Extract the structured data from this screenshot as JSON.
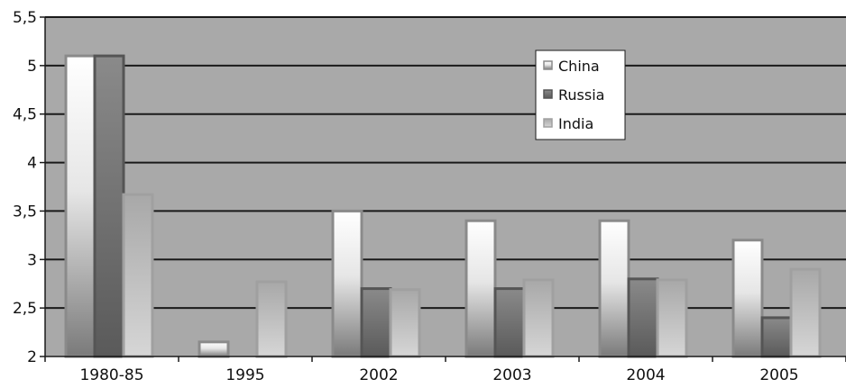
{
  "chart_data": {
    "type": "bar",
    "title": "",
    "xlabel": "",
    "ylabel": "",
    "ylim": [
      2,
      5.5
    ],
    "yticks": [
      "2",
      "2,5",
      "3",
      "3,5",
      "4",
      "4,5",
      "5",
      "5,5"
    ],
    "ytick_values": [
      2,
      2.5,
      3,
      3.5,
      4,
      4.5,
      5,
      5.5
    ],
    "categories": [
      "1980-85",
      "1995",
      "2002",
      "2003",
      "2004",
      "2005"
    ],
    "series": [
      {
        "name": "China",
        "values": [
          5.1,
          2.15,
          3.5,
          3.4,
          3.4,
          3.2
        ],
        "color": "#8a8a8a",
        "fill": "china-gradient"
      },
      {
        "name": "Russia",
        "values": [
          5.1,
          null,
          2.7,
          2.7,
          2.8,
          2.4
        ],
        "color": "#555555",
        "fill": "russia-gradient"
      },
      {
        "name": "India",
        "values": [
          3.67,
          2.77,
          2.69,
          2.79,
          2.79,
          2.9
        ],
        "color": "#a0a0a0",
        "fill": "india-gradient"
      }
    ],
    "grid": true,
    "legend_position": "top-right-inside",
    "plot_background": "#a9a9a9"
  }
}
